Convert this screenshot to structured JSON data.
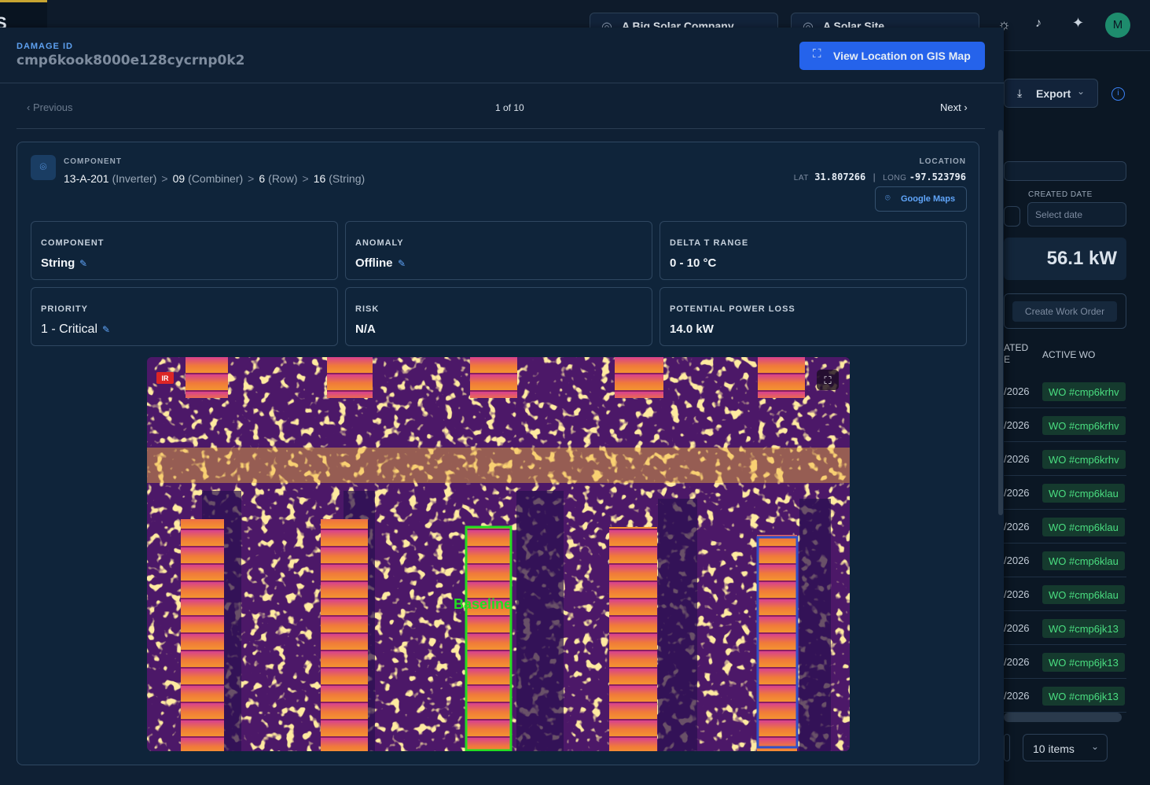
{
  "topbar": {
    "logo": "S",
    "company": "A Big Solar Company",
    "site": "A Solar Site",
    "avatar": "M"
  },
  "panel": {
    "label": "DAMAGE ID",
    "id": "cmp6kook8000e128cycrnp0k2",
    "gis_button": "View Location on GIS Map",
    "previous": "Previous",
    "counter": "1 of 10",
    "next": "Next"
  },
  "component": {
    "label": "COMPONENT",
    "path": [
      {
        "value": "13-A-201",
        "type": "(Inverter)"
      },
      {
        "value": "09",
        "type": "(Combiner)"
      },
      {
        "value": "6",
        "type": "(Row)"
      },
      {
        "value": "16",
        "type": "(String)"
      }
    ],
    "separator": ">",
    "location_label": "LOCATION",
    "lat_label": "LAT",
    "lat": "31.807266",
    "long_label": "LONG",
    "long": "-97.523796",
    "maps_button": "Google Maps"
  },
  "fields": [
    {
      "label": "COMPONENT",
      "value": "String",
      "editable": true
    },
    {
      "label": "ANOMALY",
      "value": "Offline",
      "editable": true
    },
    {
      "label": "DELTA T RANGE",
      "value": "0 - 10 °C",
      "editable": false
    },
    {
      "label": "PRIORITY",
      "value": "1 - Critical",
      "editable": true
    },
    {
      "label": "RISK",
      "value": "N/A",
      "editable": false
    },
    {
      "label": "POTENTIAL POWER LOSS",
      "value": "14.0 kW",
      "editable": false
    }
  ],
  "image": {
    "badge": "IR",
    "annotation": "Baseline"
  },
  "background": {
    "export": "Export",
    "created_date_label": "CREATED DATE",
    "date_placeholder": "Select date",
    "power": "56.1 kW",
    "create_wo": "Create Work Order",
    "created_col": "ATED E",
    "active_wo": "ACTIVE WO",
    "rows": [
      {
        "date": "/2026",
        "wo": "WO #cmp6krhv"
      },
      {
        "date": "/2026",
        "wo": "WO #cmp6krhv"
      },
      {
        "date": "/2026",
        "wo": "WO #cmp6krhv"
      },
      {
        "date": "/2026",
        "wo": "WO #cmp6klau"
      },
      {
        "date": "/2026",
        "wo": "WO #cmp6klau"
      },
      {
        "date": "/2026",
        "wo": "WO #cmp6klau"
      },
      {
        "date": "/2026",
        "wo": "WO #cmp6klau"
      },
      {
        "date": "/2026",
        "wo": "WO #cmp6jk13"
      },
      {
        "date": "/2026",
        "wo": "WO #cmp6jk13"
      },
      {
        "date": "/2026",
        "wo": "WO #cmp6jk13"
      }
    ],
    "page_size": "10 items"
  }
}
